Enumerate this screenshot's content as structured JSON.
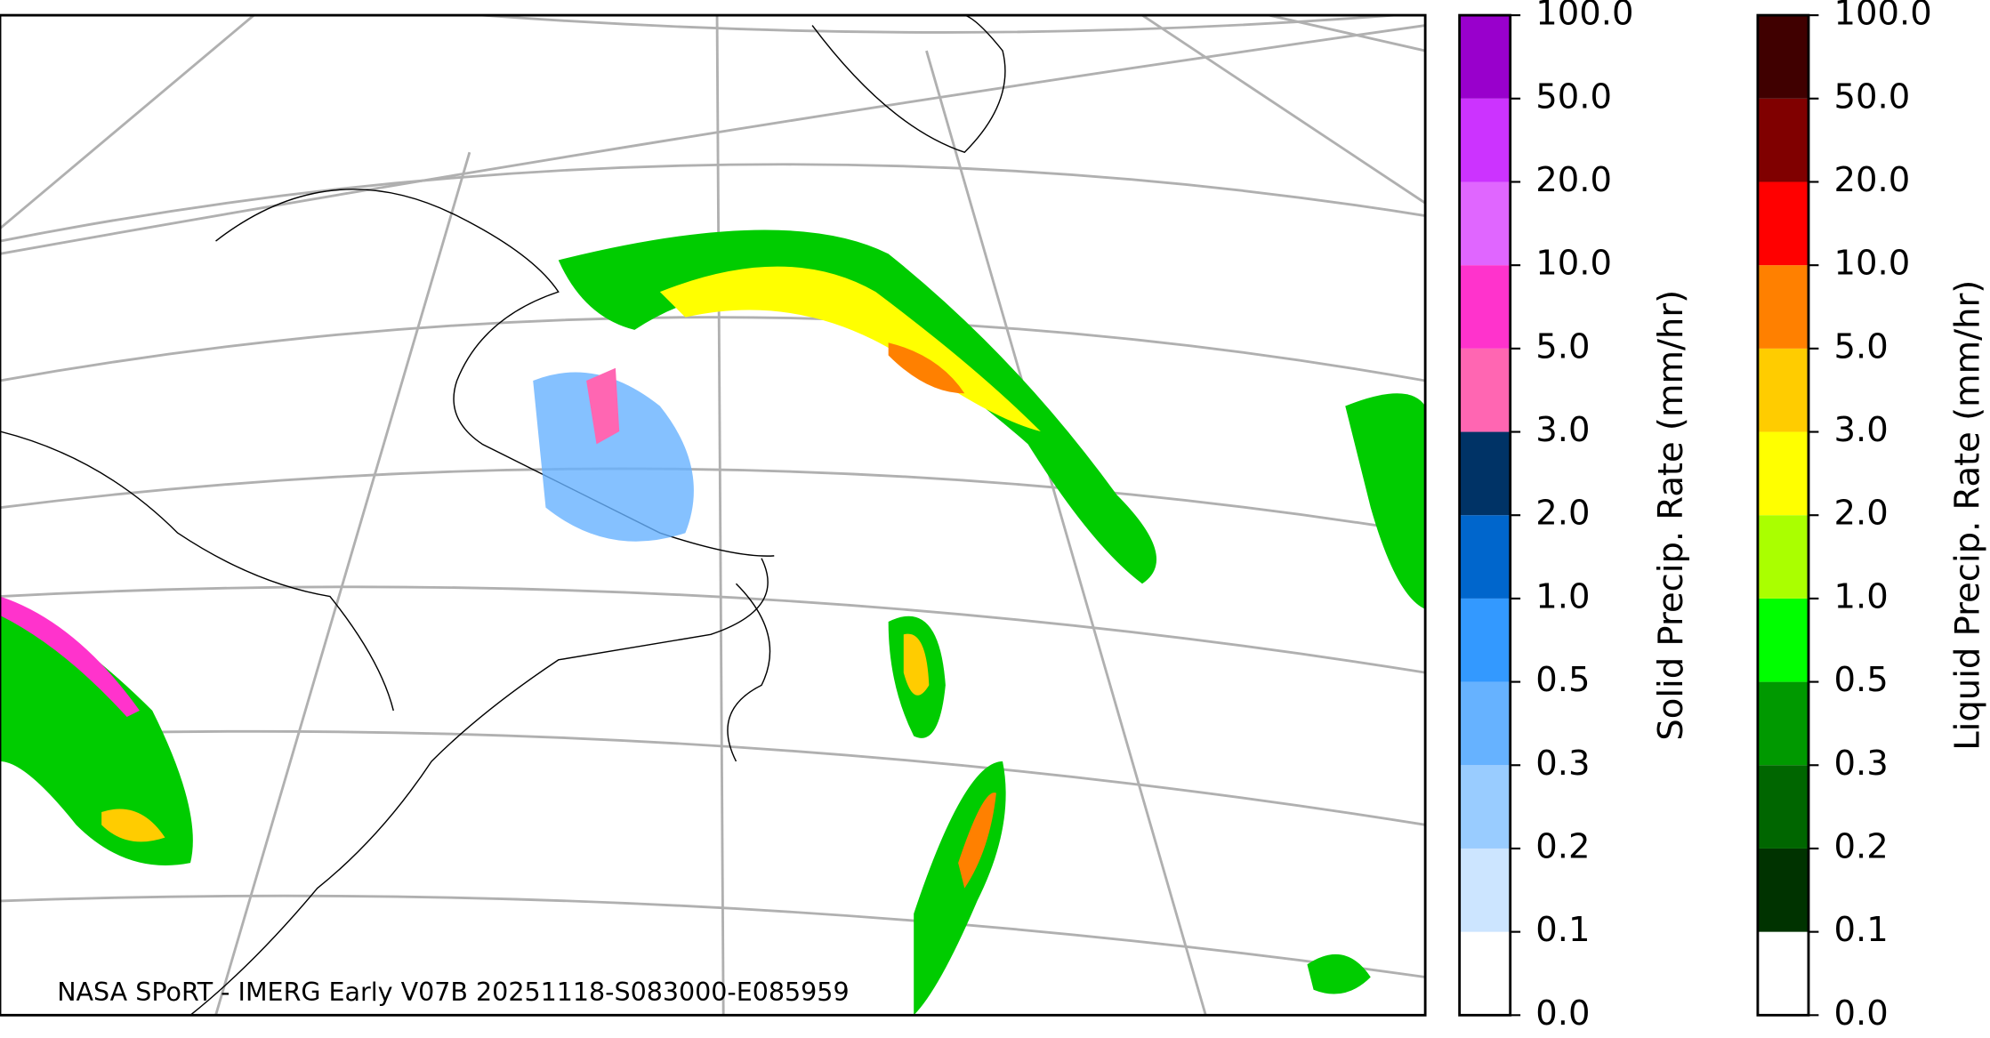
{
  "map": {
    "caption": "NASA SPoRT - IMERG Early V07B 20251118-S083000-E085959"
  },
  "colorbars": [
    {
      "label": "Solid Precip. Rate (mm/hr)",
      "ticks": [
        {
          "value": 0,
          "label": "0.0"
        },
        {
          "value": 0.1,
          "label": "0.1"
        },
        {
          "value": 0.2,
          "label": "0.2"
        },
        {
          "value": 0.3,
          "label": "0.3"
        },
        {
          "value": 0.5,
          "label": "0.5"
        },
        {
          "value": 1,
          "label": "1.0"
        },
        {
          "value": 2,
          "label": "2.0"
        },
        {
          "value": 3,
          "label": "3.0"
        },
        {
          "value": 5,
          "label": "5.0"
        },
        {
          "value": 10,
          "label": "10.0"
        },
        {
          "value": 20,
          "label": "20.0"
        },
        {
          "value": 50,
          "label": "50.0"
        },
        {
          "value": 100,
          "label": "100.0"
        }
      ],
      "colors": [
        "#ffffff",
        "#cce5ff",
        "#99ccff",
        "#66b2ff",
        "#3399ff",
        "#0066cc",
        "#003366",
        "#ff66b2",
        "#ff33cc",
        "#e066ff",
        "#cc33ff",
        "#9900cc"
      ]
    },
    {
      "label": "Liquid Precip. Rate (mm/hr)",
      "ticks": [
        {
          "value": 0,
          "label": "0.0"
        },
        {
          "value": 0.1,
          "label": "0.1"
        },
        {
          "value": 0.2,
          "label": "0.2"
        },
        {
          "value": 0.3,
          "label": "0.3"
        },
        {
          "value": 0.5,
          "label": "0.5"
        },
        {
          "value": 1,
          "label": "1.0"
        },
        {
          "value": 2,
          "label": "2.0"
        },
        {
          "value": 3,
          "label": "3.0"
        },
        {
          "value": 5,
          "label": "5.0"
        },
        {
          "value": 10,
          "label": "10.0"
        },
        {
          "value": 20,
          "label": "20.0"
        },
        {
          "value": 50,
          "label": "50.0"
        },
        {
          "value": 100,
          "label": "100.0"
        }
      ],
      "colors": [
        "#ffffff",
        "#003300",
        "#006600",
        "#009900",
        "#00ff00",
        "#aaff00",
        "#ffff00",
        "#ffcc00",
        "#ff8000",
        "#ff0000",
        "#800000",
        "#400000"
      ]
    }
  ]
}
